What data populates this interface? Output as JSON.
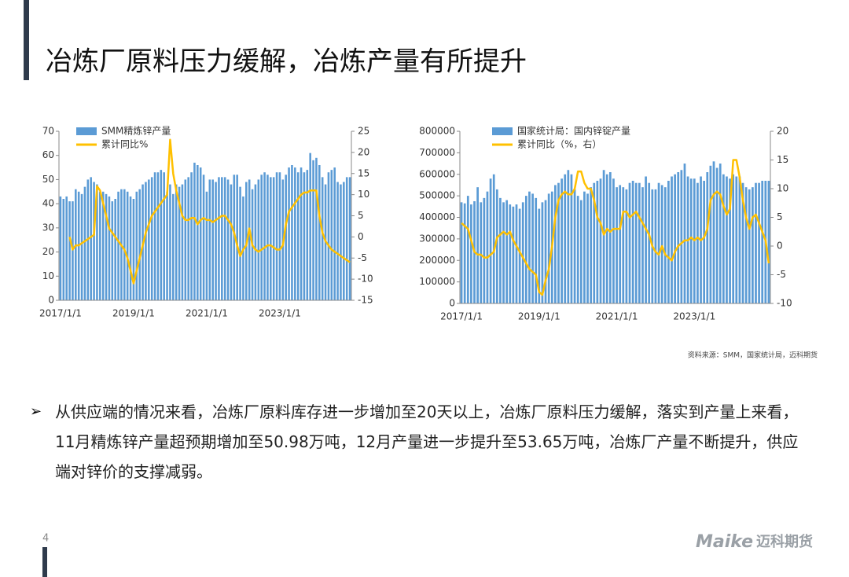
{
  "title": "冶炼厂原料压力缓解，冶炼产量有所提升",
  "chart_data": [
    {
      "type": "combo",
      "legend": "top-left",
      "categories": [
        "2017/1/1",
        null,
        null,
        null,
        null,
        null,
        null,
        null,
        null,
        null,
        null,
        null,
        null,
        null,
        null,
        null,
        null,
        null,
        null,
        null,
        null,
        null,
        null,
        null,
        "2019/1/1",
        null,
        null,
        null,
        null,
        null,
        null,
        null,
        null,
        null,
        null,
        null,
        null,
        null,
        null,
        null,
        null,
        null,
        null,
        null,
        null,
        null,
        null,
        null,
        "2021/1/1",
        null,
        null,
        null,
        null,
        null,
        null,
        null,
        null,
        null,
        null,
        null,
        null,
        null,
        null,
        null,
        null,
        null,
        null,
        null,
        null,
        null,
        null,
        null,
        "2023/1/1",
        null,
        null,
        null,
        null,
        null,
        null,
        null,
        null,
        null,
        null,
        null,
        null,
        null,
        null,
        null,
        null,
        null,
        null,
        null,
        null,
        null,
        null,
        null
      ],
      "ylim": [
        0,
        70
      ],
      "yticks": [
        0,
        10,
        20,
        30,
        40,
        50,
        60,
        70
      ],
      "y2lim": [
        -15,
        25
      ],
      "y2ticks": [
        -15,
        -10,
        -5,
        0,
        5,
        10,
        15,
        20,
        25
      ],
      "series": [
        {
          "name": "SMM精炼锌产量",
          "type": "bar",
          "color": "#5b9bd5",
          "values": [
            43,
            42,
            43,
            41,
            41,
            46,
            45,
            44,
            47,
            50,
            51,
            49,
            48,
            45,
            45,
            44,
            43,
            41,
            42,
            45,
            46,
            46,
            45,
            43,
            42,
            45,
            46,
            48,
            49,
            50,
            51,
            53,
            53,
            54,
            53,
            45,
            48,
            44,
            48,
            47,
            48,
            50,
            51,
            53,
            57,
            56,
            55,
            52,
            45,
            50,
            50,
            49,
            51,
            51,
            51,
            50,
            48,
            52,
            52,
            47,
            43,
            49,
            50,
            46,
            48,
            50,
            52,
            53,
            52,
            51,
            51,
            53,
            53,
            50,
            52,
            55,
            56,
            55,
            53,
            55,
            53,
            54,
            61,
            58,
            59,
            56,
            51,
            48,
            53,
            54,
            55,
            49,
            48,
            49,
            51,
            51
          ]
        },
        {
          "name": "累计同比%",
          "type": "line",
          "axis": "y2",
          "color": "#ffc000",
          "values": [
            null,
            null,
            null,
            0,
            -3,
            -2,
            -2,
            -1.5,
            -1,
            -0.5,
            0,
            0.5,
            12,
            11,
            8,
            5,
            2,
            1,
            0,
            -1,
            -2,
            -3,
            -5,
            -8,
            -11,
            -8,
            -5,
            -2,
            1,
            3,
            5,
            6,
            7,
            8,
            9,
            10,
            23,
            15,
            11,
            8,
            5,
            4,
            4,
            4.5,
            4.5,
            3,
            4,
            4.5,
            4,
            4,
            3.5,
            4,
            4.5,
            5,
            5,
            4,
            3,
            1,
            -2,
            -4.5,
            -3,
            -2,
            2,
            -2,
            -3,
            -3.5,
            -3,
            -2.5,
            -2,
            -2,
            -2.5,
            -3,
            -3,
            -2,
            3,
            6,
            7,
            8,
            9,
            10,
            10.5,
            10.5,
            11,
            11,
            11,
            5,
            1,
            -1,
            -2,
            -3,
            -3.5,
            -4,
            -4.5,
            -5,
            -5.5,
            -6
          ]
        }
      ]
    },
    {
      "type": "combo",
      "legend": "top-left",
      "categories": [
        "2017/1/1",
        null,
        null,
        null,
        null,
        null,
        null,
        null,
        null,
        null,
        null,
        null,
        null,
        null,
        null,
        null,
        null,
        null,
        null,
        null,
        null,
        null,
        null,
        null,
        "2019/1/1",
        null,
        null,
        null,
        null,
        null,
        null,
        null,
        null,
        null,
        null,
        null,
        null,
        null,
        null,
        null,
        null,
        null,
        null,
        null,
        null,
        null,
        null,
        null,
        "2021/1/1",
        null,
        null,
        null,
        null,
        null,
        null,
        null,
        null,
        null,
        null,
        null,
        null,
        null,
        null,
        null,
        null,
        null,
        null,
        null,
        null,
        null,
        null,
        null,
        "2023/1/1",
        null,
        null,
        null,
        null,
        null,
        null,
        null,
        null,
        null,
        null,
        null,
        null,
        null,
        null,
        null,
        null,
        null,
        null,
        null,
        null,
        null,
        null,
        null
      ],
      "ylim": [
        0,
        800000
      ],
      "yticks": [
        0,
        100000,
        200000,
        300000,
        400000,
        500000,
        600000,
        700000,
        800000
      ],
      "y2lim": [
        -10,
        20
      ],
      "y2ticks": [
        -10,
        -5,
        0,
        5,
        10,
        15,
        20
      ],
      "series": [
        {
          "name": "国家统计局：国内锌锭产量",
          "type": "bar",
          "color": "#5b9bd5",
          "values": [
            470000,
            465000,
            500000,
            460000,
            475000,
            540000,
            470000,
            490000,
            520000,
            580000,
            600000,
            530000,
            490000,
            470000,
            480000,
            460000,
            450000,
            460000,
            440000,
            470000,
            500000,
            520000,
            510000,
            490000,
            440000,
            470000,
            480000,
            510000,
            520000,
            550000,
            560000,
            580000,
            600000,
            620000,
            600000,
            530000,
            500000,
            480000,
            520000,
            510000,
            540000,
            560000,
            570000,
            580000,
            620000,
            600000,
            610000,
            580000,
            540000,
            550000,
            540000,
            530000,
            560000,
            570000,
            560000,
            560000,
            540000,
            590000,
            560000,
            530000,
            530000,
            560000,
            550000,
            540000,
            570000,
            590000,
            600000,
            610000,
            620000,
            650000,
            590000,
            580000,
            580000,
            560000,
            590000,
            570000,
            610000,
            640000,
            660000,
            630000,
            650000,
            600000,
            590000,
            580000,
            600000,
            590000,
            590000,
            560000,
            540000,
            530000,
            540000,
            560000,
            560000,
            570000,
            570000,
            570000
          ]
        },
        {
          "name": "累计同比（%，右）",
          "type": "line",
          "axis": "y2",
          "color": "#ffc000",
          "values": [
            4,
            3.5,
            3,
            1,
            -1,
            -1.5,
            -1.5,
            -2,
            -2,
            -1.5,
            -1,
            1.5,
            2,
            2.5,
            2,
            2.5,
            1,
            0,
            -1,
            -2,
            -3,
            -4,
            -4.5,
            -5,
            -8,
            -8.5,
            -6,
            -4,
            0,
            5,
            8,
            9,
            9.5,
            9,
            9,
            10,
            13,
            13,
            11,
            10,
            10,
            8,
            5,
            4,
            2,
            3,
            2.5,
            3,
            3,
            3,
            6,
            6,
            5,
            5.5,
            6,
            5,
            4,
            3,
            2,
            0,
            -1,
            -1.5,
            0,
            -1.5,
            -2,
            -2.5,
            -1,
            0,
            0.5,
            1,
            1,
            1.5,
            1,
            1.5,
            1,
            1.5,
            3,
            8,
            9,
            9.5,
            9,
            7,
            5.5,
            6.5,
            15,
            15,
            12,
            8,
            5,
            3,
            5,
            5.5,
            4,
            2.5,
            1,
            -3
          ]
        }
      ]
    }
  ],
  "source": "资料来源：SMM，国家统计局，迈科期货",
  "bullet": "从供应端的情况来看，冶炼厂原料库存进一步增加至20天以上，冶炼厂原料压力缓解，落实到产量上来看，11月精炼锌产量超预期增加至50.98万吨，12月产量进一步提升至53.65万吨，冶炼厂产量不断提升，供应端对锌价的支撑减弱。",
  "page_number": "4",
  "logo": {
    "brand": "Maike",
    "name": "迈科期货"
  }
}
